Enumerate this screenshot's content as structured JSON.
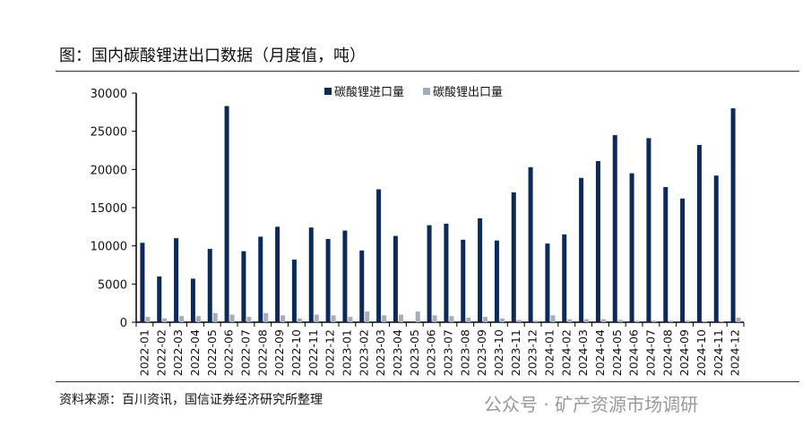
{
  "title": "图：国内碳酸锂进出口数据（月度值，吨）",
  "source": "资料来源：百川资讯，国信证券经济研究所整理",
  "watermark": "公众号 · 矿产资源市场调研",
  "colors": {
    "import": "#0b2a5a",
    "export": "#a6adb8"
  },
  "chart_data": {
    "type": "bar",
    "title": "国内碳酸锂进出口数据（月度值，吨）",
    "categories": [
      "2022-01",
      "2022-02",
      "2022-03",
      "2022-04",
      "2022-05",
      "2022-06",
      "2022-07",
      "2022-08",
      "2022-09",
      "2022-10",
      "2022-11",
      "2022-12",
      "2023-01",
      "2023-02",
      "2023-03",
      "2023-04",
      "2023-05",
      "2023-06",
      "2023-07",
      "2023-08",
      "2023-09",
      "2023-10",
      "2023-11",
      "2023-12",
      "2024-01",
      "2024-02",
      "2024-03",
      "2024-04",
      "2024-05",
      "2024-06",
      "2024-07",
      "2024-08",
      "2024-09",
      "2024-10",
      "2024-11",
      "2024-12"
    ],
    "series": [
      {
        "name": "碳酸锂进口量",
        "values": [
          10400,
          6000,
          11000,
          5700,
          9600,
          28300,
          9300,
          11200,
          12500,
          8200,
          12400,
          10900,
          12000,
          9400,
          17400,
          11300,
          0,
          12700,
          12900,
          10800,
          13600,
          10700,
          17000,
          20300,
          10300,
          11500,
          18900,
          21100,
          24500,
          19500,
          24100,
          17700,
          16200,
          23200,
          19200,
          28000
        ]
      },
      {
        "name": "碳酸锂出口量",
        "values": [
          700,
          500,
          800,
          800,
          1200,
          1000,
          700,
          1200,
          900,
          500,
          1000,
          900,
          700,
          1400,
          900,
          1000,
          1400,
          900,
          800,
          600,
          700,
          500,
          300,
          200,
          900,
          400,
          400,
          400,
          300,
          200,
          200,
          200,
          200,
          100,
          100,
          600
        ]
      }
    ],
    "yticks": [
      "0",
      "5000",
      "10000",
      "15000",
      "20000",
      "25000",
      "30000"
    ],
    "ylim": [
      0,
      30000
    ],
    "legend": "top-right"
  }
}
